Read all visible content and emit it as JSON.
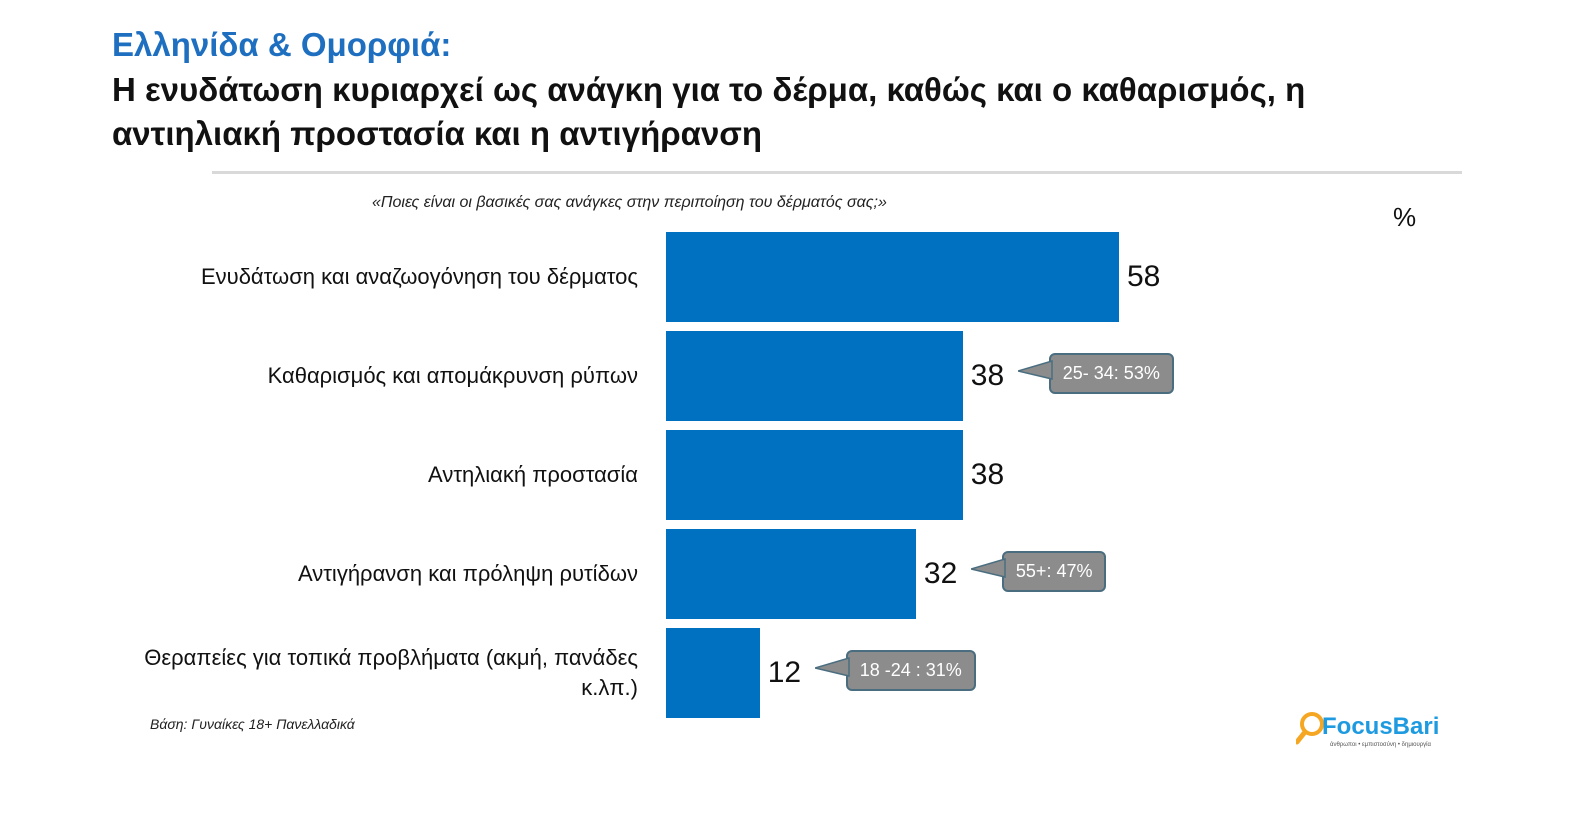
{
  "header": {
    "title": "Ελληνίδα & Ομορφιά:",
    "subtitle": "Η ενυδάτωση κυριαρχεί ως ανάγκη για το δέρμα, καθώς και ο καθαρισμός, η αντιηλιακή προστασία και η αντιγήρανση"
  },
  "logo": {
    "text": "FocusBari",
    "tagline": "άνθρωποι • εμπιστοσύνη • δημιουργία"
  },
  "chart_data": {
    "type": "bar",
    "orientation": "horizontal",
    "title": "«Ποιες είναι οι βασικές σας ανάγκες στην περιποίηση του δέρματός σας;»",
    "unit": "%",
    "categories": [
      "Ενυδάτωση και αναζωογόνηση του δέρματος",
      "Καθαρισμός και απομάκρυνση ρύπων",
      "Αντηλιακή προστασία",
      "Αντιγήρανση και πρόληψη ρυτίδων",
      "Θεραπείες για τοπικά προβλήματα (ακμή, πανάδες κ.λπ.)"
    ],
    "values": [
      58,
      38,
      38,
      32,
      12
    ],
    "annotations": [
      "",
      "25- 34: 53%",
      "",
      "55+: 47%",
      "18 -24 : 31%"
    ],
    "bar_color": "#0070c0",
    "callout_color": "#8c8c8c",
    "footnote": "Βάση: Γυναίκες 18+ Πανελλαδικά"
  }
}
